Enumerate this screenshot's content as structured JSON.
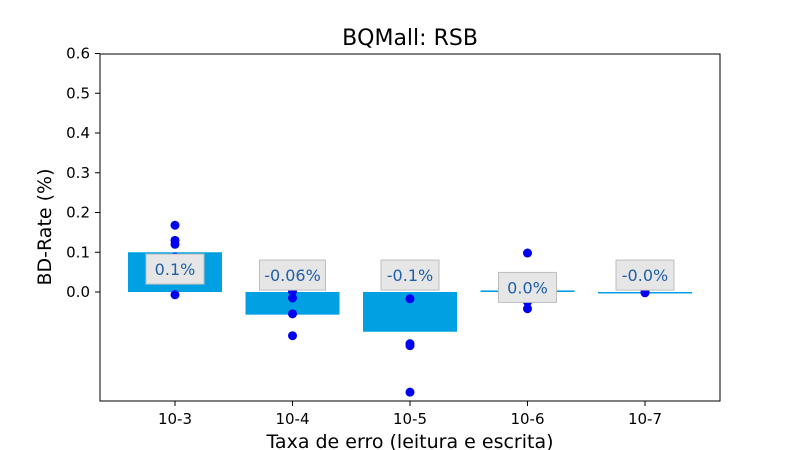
{
  "chart_data": {
    "type": "bar",
    "title": "BQMall: RSB",
    "xlabel": "Taxa de erro (leitura e escrita)",
    "ylabel": "BD-Rate (%)",
    "ylim": [
      -0.27,
      0.6
    ],
    "yticks": [
      "0.6",
      "0.5",
      "0.4",
      "0.3",
      "0.2",
      "0.1",
      "0.0"
    ],
    "categories": [
      "10-3",
      "10-4",
      "10-5",
      "10-6",
      "10-7"
    ],
    "values": [
      0.1,
      -0.057,
      -0.1,
      0.004,
      -0.001
    ],
    "labels": [
      "0.1%",
      "-0.06%",
      "-0.1%",
      "0.0%",
      "-0.0%"
    ],
    "points": [
      [
        0.168,
        0.13,
        0.12,
        0.088,
        -0.007
      ],
      [
        0.002,
        -0.015,
        -0.055,
        -0.11
      ],
      [
        0.04,
        -0.017,
        -0.13,
        -0.135,
        -0.252
      ],
      [
        0.098,
        0.002,
        -0.008,
        -0.025,
        -0.042
      ],
      [
        0.0,
        -0.002
      ]
    ],
    "bar_color": "#00a0e3",
    "point_color": "#0000ee",
    "label_color": "#1f5fa8",
    "grid": false,
    "legend": "none"
  }
}
